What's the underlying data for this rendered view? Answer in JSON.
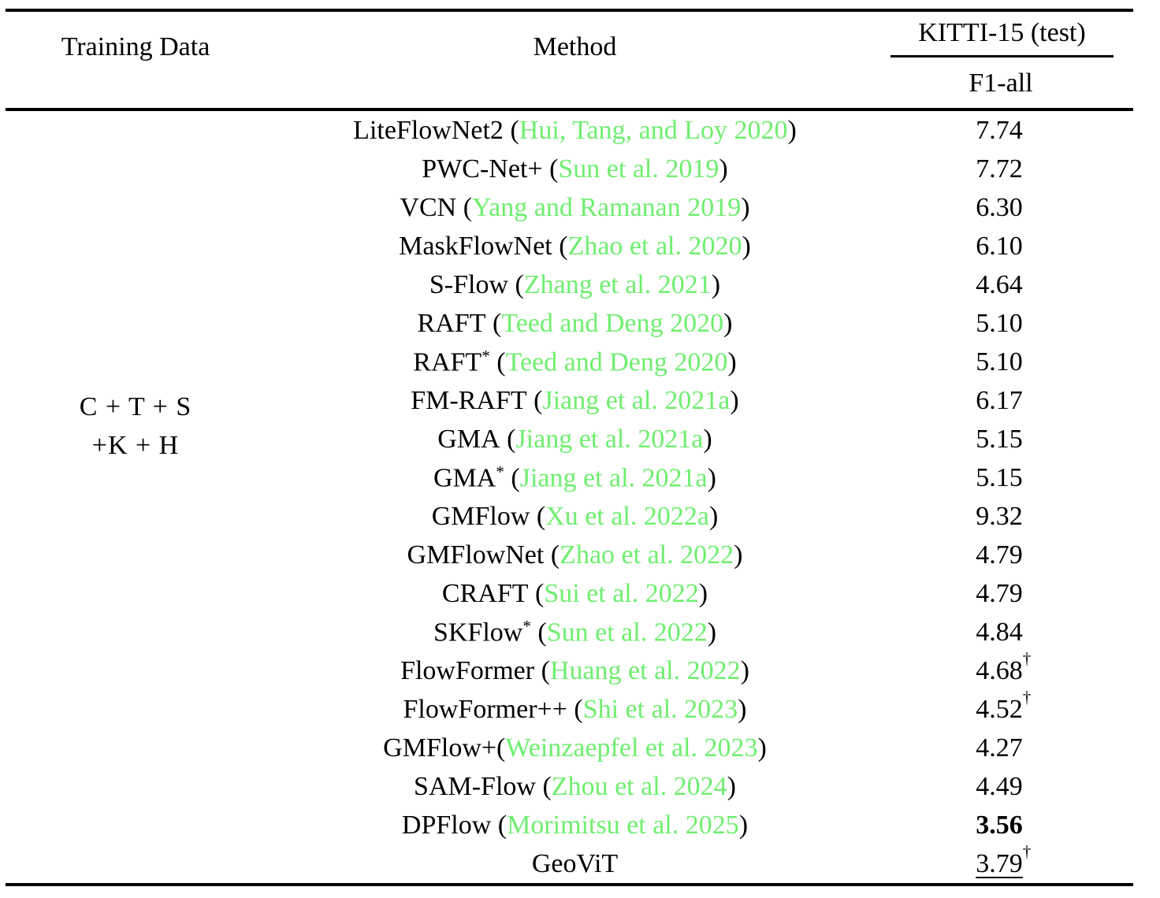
{
  "table": {
    "headers": {
      "training_data": "Training Data",
      "method": "Method",
      "benchmark": "KITTI-15 (test)",
      "metric": "F1-all"
    },
    "training_data_group": {
      "line1": "C + T + S",
      "line2": "+K + H"
    },
    "colors": {
      "citation_green": "#6fee6f",
      "text": "#000000",
      "background": "#ffffff"
    },
    "rows": [
      {
        "method": "LiteFlowNet2",
        "superscript": "",
        "citation": "Hui, Tang, and Loy 2020",
        "space_before_paren": true,
        "value": "7.74",
        "dagger": false,
        "bold": false,
        "underline": false
      },
      {
        "method": "PWC-Net+",
        "superscript": "",
        "citation": "Sun et al. 2019",
        "space_before_paren": true,
        "value": "7.72",
        "dagger": false,
        "bold": false,
        "underline": false
      },
      {
        "method": "VCN",
        "superscript": "",
        "citation": "Yang and Ramanan 2019",
        "space_before_paren": true,
        "value": "6.30",
        "dagger": false,
        "bold": false,
        "underline": false
      },
      {
        "method": "MaskFlowNet",
        "superscript": "",
        "citation": "Zhao et al. 2020",
        "space_before_paren": true,
        "value": "6.10",
        "dagger": false,
        "bold": false,
        "underline": false
      },
      {
        "method": "S-Flow",
        "superscript": "",
        "citation": "Zhang et al. 2021",
        "space_before_paren": true,
        "value": "4.64",
        "dagger": false,
        "bold": false,
        "underline": false
      },
      {
        "method": "RAFT",
        "superscript": "",
        "citation": "Teed and Deng 2020",
        "space_before_paren": true,
        "value": "5.10",
        "dagger": false,
        "bold": false,
        "underline": false
      },
      {
        "method": "RAFT",
        "superscript": "*",
        "citation": "Teed and Deng 2020",
        "space_before_paren": true,
        "value": "5.10",
        "dagger": false,
        "bold": false,
        "underline": false
      },
      {
        "method": "FM-RAFT",
        "superscript": "",
        "citation": "Jiang et al. 2021a",
        "space_before_paren": true,
        "value": "6.17",
        "dagger": false,
        "bold": false,
        "underline": false
      },
      {
        "method": "GMA",
        "superscript": "",
        "citation": "Jiang et al. 2021a",
        "space_before_paren": true,
        "value": "5.15",
        "dagger": false,
        "bold": false,
        "underline": false
      },
      {
        "method": "GMA",
        "superscript": "*",
        "citation": "Jiang et al. 2021a",
        "space_before_paren": true,
        "value": "5.15",
        "dagger": false,
        "bold": false,
        "underline": false
      },
      {
        "method": "GMFlow",
        "superscript": "",
        "citation": "Xu et al. 2022a",
        "space_before_paren": true,
        "value": "9.32",
        "dagger": false,
        "bold": false,
        "underline": false
      },
      {
        "method": "GMFlowNet",
        "superscript": "",
        "citation": "Zhao et al. 2022",
        "space_before_paren": true,
        "value": "4.79",
        "dagger": false,
        "bold": false,
        "underline": false
      },
      {
        "method": "CRAFT",
        "superscript": "",
        "citation": "Sui et al. 2022",
        "space_before_paren": true,
        "value": "4.79",
        "dagger": false,
        "bold": false,
        "underline": false
      },
      {
        "method": "SKFlow",
        "superscript": "*",
        "citation": "Sun et al. 2022",
        "space_before_paren": true,
        "value": "4.84",
        "dagger": false,
        "bold": false,
        "underline": false
      },
      {
        "method": "FlowFormer",
        "superscript": "",
        "citation": "Huang et al. 2022",
        "space_before_paren": true,
        "value": "4.68",
        "dagger": true,
        "bold": false,
        "underline": false
      },
      {
        "method": "FlowFormer++",
        "superscript": "",
        "citation": "Shi et al. 2023",
        "space_before_paren": true,
        "value": "4.52",
        "dagger": true,
        "bold": false,
        "underline": false
      },
      {
        "method": "GMFlow+",
        "superscript": "",
        "citation": "Weinzaepfel et al. 2023",
        "space_before_paren": false,
        "value": "4.27",
        "dagger": false,
        "bold": false,
        "underline": false
      },
      {
        "method": "SAM-Flow",
        "superscript": "",
        "citation": "Zhou et al. 2024",
        "space_before_paren": true,
        "value": "4.49",
        "dagger": false,
        "bold": false,
        "underline": false
      },
      {
        "method": "DPFlow",
        "superscript": "",
        "citation": "Morimitsu et al. 2025",
        "space_before_paren": true,
        "value": "3.56",
        "dagger": false,
        "bold": true,
        "underline": false
      },
      {
        "method": "GeoViT",
        "superscript": "",
        "citation": null,
        "space_before_paren": true,
        "value": "3.79",
        "dagger": true,
        "bold": false,
        "underline": true
      }
    ]
  }
}
